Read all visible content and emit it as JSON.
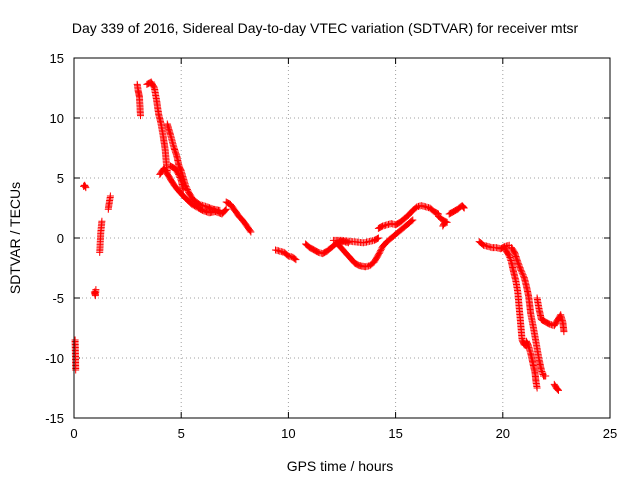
{
  "chart_data": {
    "type": "scatter",
    "title": "Day 339 of 2016, Sidereal Day-to-day VTEC variation (SDTVAR) for receiver mtsr",
    "xlabel": "GPS time / hours",
    "ylabel": "SDTVAR / TECUs",
    "xlim": [
      0,
      25
    ],
    "ylim": [
      -15,
      15
    ],
    "xticks": [
      0,
      5,
      10,
      15,
      20,
      25
    ],
    "yticks": [
      -15,
      -10,
      -5,
      0,
      5,
      10,
      15
    ],
    "grid": true,
    "marker": "+",
    "color": "#ff0000",
    "series": [
      {
        "name": "SDTVAR",
        "segments": [
          [
            [
              0.05,
              -8.5
            ],
            [
              0.07,
              -10
            ],
            [
              0.08,
              -11
            ]
          ],
          [
            [
              0.45,
              4.3
            ],
            [
              0.5,
              4.4
            ],
            [
              0.55,
              4.2
            ]
          ],
          [
            [
              0.95,
              -4.5
            ],
            [
              1.0,
              -4.8
            ],
            [
              1.02,
              -4.3
            ]
          ],
          [
            [
              1.2,
              -1.2
            ],
            [
              1.25,
              0.5
            ],
            [
              1.3,
              1.4
            ]
          ],
          [
            [
              1.6,
              2.4
            ],
            [
              1.65,
              3.0
            ],
            [
              1.7,
              3.5
            ]
          ],
          [
            [
              2.95,
              12.8
            ],
            [
              3.0,
              12.2
            ],
            [
              3.05,
              11.8
            ],
            [
              3.1,
              10.2
            ]
          ],
          [
            [
              3.4,
              12.8
            ],
            [
              3.6,
              13.0
            ],
            [
              3.75,
              12.5
            ],
            [
              3.85,
              11.5
            ],
            [
              3.95,
              10.3
            ],
            [
              4.05,
              9.6
            ],
            [
              4.15,
              8.6
            ],
            [
              4.25,
              7.4
            ],
            [
              4.3,
              6.4
            ],
            [
              4.35,
              5.5
            ]
          ],
          [
            [
              4.0,
              5.3
            ],
            [
              4.2,
              5.8
            ],
            [
              4.4,
              5.2
            ],
            [
              4.6,
              4.6
            ],
            [
              4.8,
              4.1
            ],
            [
              5.0,
              3.7
            ],
            [
              5.2,
              3.3
            ],
            [
              5.5,
              2.8
            ],
            [
              5.8,
              2.5
            ],
            [
              6.0,
              2.3
            ],
            [
              6.3,
              2.1
            ],
            [
              6.6,
              2.2
            ],
            [
              6.9,
              2.0
            ],
            [
              7.1,
              2.4
            ]
          ],
          [
            [
              4.35,
              9.5
            ],
            [
              4.5,
              8.6
            ],
            [
              4.65,
              7.6
            ],
            [
              4.8,
              6.8
            ],
            [
              4.9,
              6.0
            ],
            [
              5.0,
              5.6
            ],
            [
              5.1,
              5.0
            ],
            [
              5.2,
              4.4
            ],
            [
              5.35,
              3.8
            ],
            [
              5.55,
              3.2
            ],
            [
              5.85,
              2.8
            ],
            [
              6.2,
              2.6
            ],
            [
              6.5,
              2.4
            ],
            [
              6.8,
              2.3
            ]
          ],
          [
            [
              4.5,
              6.0
            ],
            [
              4.7,
              5.8
            ],
            [
              4.85,
              5.4
            ],
            [
              5.0,
              4.8
            ],
            [
              5.1,
              4.0
            ]
          ],
          [
            [
              7.1,
              3.0
            ],
            [
              7.3,
              2.8
            ],
            [
              7.5,
              2.3
            ],
            [
              7.7,
              1.8
            ],
            [
              7.9,
              1.4
            ],
            [
              8.1,
              0.9
            ],
            [
              8.25,
              0.5
            ]
          ],
          [
            [
              9.4,
              -1.0
            ],
            [
              9.6,
              -1.1
            ],
            [
              9.8,
              -1.2
            ],
            [
              10.0,
              -1.5
            ],
            [
              10.2,
              -1.6
            ],
            [
              10.35,
              -1.8
            ]
          ],
          [
            [
              10.8,
              -0.5
            ],
            [
              11.0,
              -0.8
            ],
            [
              11.2,
              -1.0
            ],
            [
              11.4,
              -1.2
            ],
            [
              11.6,
              -1.3
            ],
            [
              11.8,
              -1.1
            ],
            [
              12.0,
              -0.8
            ],
            [
              12.2,
              -0.5
            ],
            [
              12.4,
              -0.3
            ],
            [
              12.6,
              -0.3
            ],
            [
              12.8,
              -0.4
            ]
          ],
          [
            [
              12.3,
              -0.5
            ],
            [
              12.5,
              -0.9
            ],
            [
              12.7,
              -1.3
            ],
            [
              12.9,
              -1.7
            ],
            [
              13.1,
              -2.1
            ],
            [
              13.3,
              -2.3
            ],
            [
              13.6,
              -2.4
            ],
            [
              13.8,
              -2.3
            ],
            [
              14.0,
              -2.0
            ],
            [
              14.2,
              -1.4
            ],
            [
              14.4,
              -0.7
            ],
            [
              14.6,
              -0.3
            ],
            [
              14.8,
              0.0
            ],
            [
              15.0,
              0.3
            ],
            [
              15.2,
              0.6
            ],
            [
              15.4,
              0.9
            ],
            [
              15.6,
              1.2
            ],
            [
              15.8,
              1.5
            ]
          ],
          [
            [
              12.1,
              -0.2
            ],
            [
              12.5,
              -0.2
            ],
            [
              13.0,
              -0.3
            ],
            [
              13.5,
              -0.4
            ],
            [
              14.0,
              -0.2
            ],
            [
              14.2,
              0.0
            ]
          ],
          [
            [
              14.2,
              0.8
            ],
            [
              14.4,
              1.0
            ],
            [
              14.6,
              1.1
            ],
            [
              14.8,
              1.2
            ],
            [
              15.0,
              1.1
            ],
            [
              15.2,
              1.3
            ],
            [
              15.4,
              1.6
            ],
            [
              15.6,
              1.9
            ],
            [
              15.8,
              2.3
            ],
            [
              16.0,
              2.6
            ],
            [
              16.2,
              2.7
            ],
            [
              16.4,
              2.6
            ],
            [
              16.6,
              2.5
            ],
            [
              16.8,
              2.2
            ],
            [
              17.0,
              2.0
            ]
          ],
          [
            [
              17.0,
              1.8
            ],
            [
              17.2,
              1.5
            ],
            [
              17.4,
              1.3
            ]
          ],
          [
            [
              17.5,
              2.0
            ],
            [
              17.7,
              2.2
            ],
            [
              17.9,
              2.4
            ],
            [
              18.1,
              2.7
            ],
            [
              18.2,
              2.5
            ]
          ],
          [
            [
              17.2,
              1.0
            ],
            [
              17.3,
              1.3
            ]
          ],
          [
            [
              18.9,
              -0.3
            ],
            [
              19.1,
              -0.6
            ],
            [
              19.3,
              -0.7
            ],
            [
              19.5,
              -0.8
            ],
            [
              19.7,
              -0.8
            ],
            [
              19.9,
              -0.9
            ],
            [
              20.1,
              -0.7
            ],
            [
              20.3,
              -0.6
            ]
          ],
          [
            [
              20.1,
              -0.9
            ],
            [
              20.3,
              -1.5
            ],
            [
              20.4,
              -2.0
            ],
            [
              20.5,
              -2.8
            ],
            [
              20.6,
              -3.5
            ],
            [
              20.7,
              -4.5
            ],
            [
              20.75,
              -5.5
            ],
            [
              20.8,
              -6.5
            ],
            [
              20.85,
              -7.5
            ],
            [
              20.9,
              -8.5
            ],
            [
              21.0,
              -8.9
            ],
            [
              21.1,
              -9.0
            ]
          ],
          [
            [
              20.4,
              -0.8
            ],
            [
              20.55,
              -1.2
            ],
            [
              20.7,
              -2.0
            ],
            [
              20.85,
              -2.7
            ],
            [
              21.0,
              -3.3
            ],
            [
              21.1,
              -4.0
            ],
            [
              21.2,
              -4.8
            ],
            [
              21.25,
              -5.5
            ],
            [
              21.3,
              -6.3
            ],
            [
              21.4,
              -7.2
            ],
            [
              21.5,
              -8.2
            ],
            [
              21.6,
              -9.2
            ],
            [
              21.7,
              -10.2
            ],
            [
              21.8,
              -11.0
            ],
            [
              21.9,
              -11.5
            ],
            [
              22.0,
              -11.5
            ]
          ],
          [
            [
              21.1,
              -8.6
            ],
            [
              21.2,
              -9.0
            ],
            [
              21.3,
              -9.6
            ],
            [
              21.4,
              -10.4
            ],
            [
              21.5,
              -11.2
            ],
            [
              21.55,
              -12.0
            ],
            [
              21.6,
              -12.5
            ]
          ],
          [
            [
              21.6,
              -5.0
            ],
            [
              21.7,
              -6.0
            ],
            [
              21.8,
              -6.8
            ],
            [
              22.0,
              -7.0
            ],
            [
              22.2,
              -7.2
            ],
            [
              22.4,
              -7.3
            ],
            [
              22.6,
              -6.7
            ],
            [
              22.7,
              -6.4
            ],
            [
              22.8,
              -7.0
            ],
            [
              22.85,
              -7.8
            ]
          ],
          [
            [
              22.4,
              -12.2
            ],
            [
              22.5,
              -12.5
            ],
            [
              22.6,
              -12.7
            ]
          ]
        ]
      }
    ]
  }
}
